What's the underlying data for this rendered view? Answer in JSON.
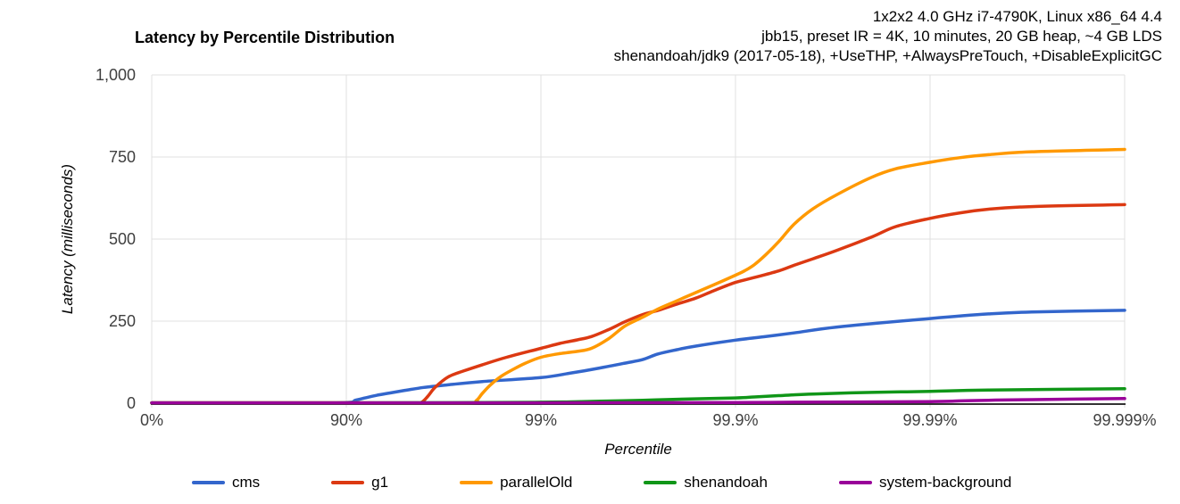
{
  "header": {
    "title": "Latency by Percentile Distribution",
    "env": [
      "1x2x2 4.0 GHz i7-4790K, Linux x86_64 4.4",
      "jbb15, preset IR = 4K, 10 minutes, 20 GB heap, ~4 GB LDS",
      "shenandoah/jdk9 (2017-05-18), +UseTHP, +AlwaysPreTouch, +DisableExplicitGC"
    ]
  },
  "chart_data": {
    "type": "line",
    "title": "Latency by Percentile Distribution",
    "xlabel": "Percentile",
    "ylabel": "Latency (milliseconds)",
    "x_scale": "logarithmic-percentile (equal width per nines-decade)",
    "x_ticks": [
      "0%",
      "90%",
      "99%",
      "99.9%",
      "99.99%",
      "99.999%"
    ],
    "y_ticks": [
      "0",
      "250",
      "500",
      "750",
      "1,000"
    ],
    "ylim": [
      0,
      1000
    ],
    "grid": true,
    "legend_position": "bottom",
    "colors": {
      "grid": "#e0e0e0",
      "baseline": "#333333",
      "tick_text": "#404040"
    },
    "series": [
      {
        "name": "cms",
        "color": "#3366CC",
        "points": [
          [
            0,
            1
          ],
          [
            50,
            1
          ],
          [
            80,
            1
          ],
          [
            90,
            2
          ],
          [
            91,
            9
          ],
          [
            92,
            16
          ],
          [
            93,
            24
          ],
          [
            94,
            31
          ],
          [
            95,
            39
          ],
          [
            96,
            48
          ],
          [
            97,
            56
          ],
          [
            98,
            66
          ],
          [
            99,
            78
          ],
          [
            99.3,
            92
          ],
          [
            99.5,
            107
          ],
          [
            99.63,
            122
          ],
          [
            99.7,
            133
          ],
          [
            99.75,
            150
          ],
          [
            99.8,
            163
          ],
          [
            99.84,
            174
          ],
          [
            99.9,
            192
          ],
          [
            99.93,
            203
          ],
          [
            99.95,
            214
          ],
          [
            99.97,
            232
          ],
          [
            99.99,
            258
          ],
          [
            99.995,
            272
          ],
          [
            99.997,
            278
          ],
          [
            99.999,
            283
          ]
        ]
      },
      {
        "name": "g1",
        "color": "#DC3912",
        "points": [
          [
            0,
            1
          ],
          [
            50,
            1
          ],
          [
            90,
            1
          ],
          [
            95.5,
            1
          ],
          [
            95.9,
            3
          ],
          [
            96.2,
            22
          ],
          [
            96.5,
            48
          ],
          [
            97,
            80
          ],
          [
            97.5,
            98
          ],
          [
            98,
            117
          ],
          [
            98.5,
            140
          ],
          [
            99,
            167
          ],
          [
            99.2,
            182
          ],
          [
            99.35,
            193
          ],
          [
            99.45,
            203
          ],
          [
            99.55,
            224
          ],
          [
            99.63,
            248
          ],
          [
            99.7,
            270
          ],
          [
            99.75,
            283
          ],
          [
            99.8,
            302
          ],
          [
            99.84,
            320
          ],
          [
            99.87,
            342
          ],
          [
            99.9,
            368
          ],
          [
            99.92,
            383
          ],
          [
            99.94,
            403
          ],
          [
            99.95,
            420
          ],
          [
            99.96,
            440
          ],
          [
            99.97,
            466
          ],
          [
            99.98,
            506
          ],
          [
            99.985,
            538
          ],
          [
            99.99,
            563
          ],
          [
            99.993,
            580
          ],
          [
            99.995,
            591
          ],
          [
            99.997,
            599
          ],
          [
            99.999,
            605
          ]
        ]
      },
      {
        "name": "parallelOld",
        "color": "#FF9900",
        "points": [
          [
            0,
            1
          ],
          [
            50,
            1
          ],
          [
            90,
            1
          ],
          [
            97.6,
            1
          ],
          [
            97.85,
            8
          ],
          [
            98,
            30
          ],
          [
            98.2,
            58
          ],
          [
            98.4,
            82
          ],
          [
            98.6,
            102
          ],
          [
            98.8,
            122
          ],
          [
            99,
            140
          ],
          [
            99.2,
            151
          ],
          [
            99.35,
            158
          ],
          [
            99.45,
            167
          ],
          [
            99.55,
            196
          ],
          [
            99.63,
            235
          ],
          [
            99.7,
            262
          ],
          [
            99.75,
            287
          ],
          [
            99.8,
            312
          ],
          [
            99.84,
            337
          ],
          [
            99.87,
            360
          ],
          [
            99.9,
            390
          ],
          [
            99.91,
            403
          ],
          [
            99.92,
            422
          ],
          [
            99.93,
            452
          ],
          [
            99.94,
            492
          ],
          [
            99.95,
            545
          ],
          [
            99.96,
            592
          ],
          [
            99.97,
            636
          ],
          [
            99.98,
            688
          ],
          [
            99.985,
            714
          ],
          [
            99.99,
            734
          ],
          [
            99.993,
            748
          ],
          [
            99.995,
            757
          ],
          [
            99.997,
            766
          ],
          [
            99.999,
            773
          ]
        ]
      },
      {
        "name": "shenandoah",
        "color": "#109618",
        "points": [
          [
            0,
            1
          ],
          [
            50,
            1
          ],
          [
            90,
            1
          ],
          [
            98,
            2
          ],
          [
            99,
            3
          ],
          [
            99.3,
            4
          ],
          [
            99.5,
            6
          ],
          [
            99.7,
            9
          ],
          [
            99.8,
            12
          ],
          [
            99.9,
            16
          ],
          [
            99.92,
            19
          ],
          [
            99.94,
            23
          ],
          [
            99.96,
            28
          ],
          [
            99.98,
            33
          ],
          [
            99.99,
            36
          ],
          [
            99.995,
            40
          ],
          [
            99.999,
            44
          ]
        ]
      },
      {
        "name": "system-background",
        "color": "#990099",
        "points": [
          [
            0,
            1
          ],
          [
            50,
            1
          ],
          [
            99,
            1
          ],
          [
            99.9,
            2
          ],
          [
            99.95,
            3
          ],
          [
            99.99,
            5
          ],
          [
            99.993,
            7
          ],
          [
            99.995,
            9
          ],
          [
            99.997,
            11
          ],
          [
            99.999,
            14
          ]
        ]
      }
    ]
  }
}
